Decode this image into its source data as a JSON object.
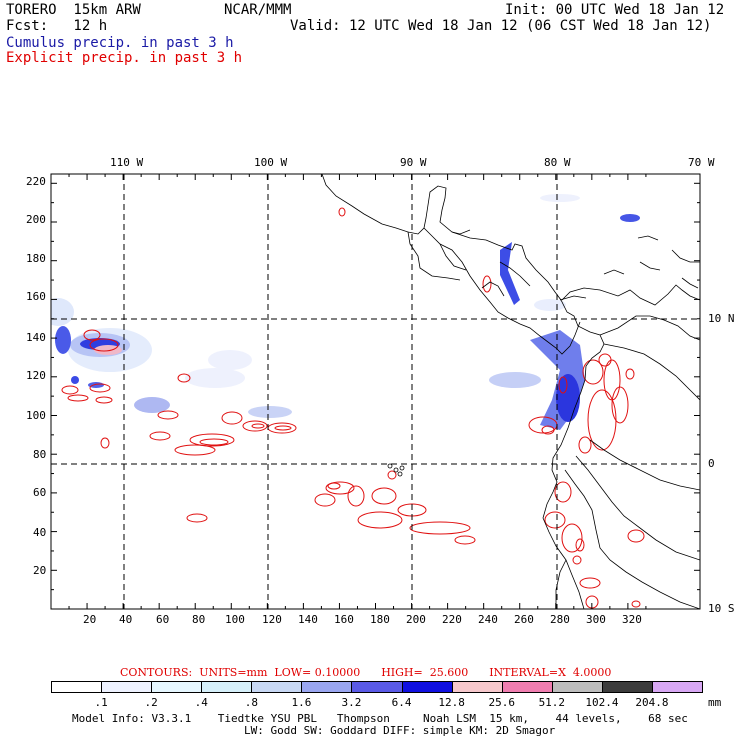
{
  "header": {
    "model": "TORERO  15km ARW",
    "org": "NCAR/MMM",
    "init": "Init: 00 UTC Wed 18 Jan 12",
    "fcst": "Fcst:   12 h",
    "valid": "Valid: 12 UTC Wed 18 Jan 12 (06 CST Wed 18 Jan 12)",
    "field1": "Cumulus precip. in past 3 h",
    "field2": "Explicit precip. in past 3 h",
    "field1_color": "#1a1aa6",
    "field2_color": "#e00000"
  },
  "map": {
    "top_lon_labels": [
      "110 W",
      "100 W",
      "90 W",
      "80 W",
      "70 W"
    ],
    "right_lat_labels": [
      "10 N",
      "0",
      "10 S"
    ],
    "left_ticks": [
      "220",
      "200",
      "180",
      "160",
      "140",
      "120",
      "100",
      "80",
      "60",
      "40",
      "20"
    ],
    "bottom_ticks": [
      "20",
      "40",
      "60",
      "80",
      "100",
      "120",
      "140",
      "160",
      "180",
      "200",
      "220",
      "240",
      "260",
      "280",
      "300",
      "320"
    ]
  },
  "contours": {
    "line": "CONTOURS:  UNITS=mm  LOW= 0.10000      HIGH=  25.600      INTERVAL=X  4.0000"
  },
  "legend": {
    "labels": [
      ".1",
      ".2",
      ".4",
      ".8",
      "1.6",
      "3.2",
      "6.4",
      "12.8",
      "25.6",
      "51.2",
      "102.4",
      "204.8"
    ],
    "unit": "mm",
    "colors": [
      "#ffffff",
      "#eef2ff",
      "#e6f7ff",
      "#d6f0fa",
      "#c8d8f4",
      "#9aa6f0",
      "#5a5ae6",
      "#0f0fe0",
      "#f6c8cc",
      "#f07eb0",
      "#bdbdbd",
      "#3c3c3c",
      "#d8a8f4"
    ]
  },
  "footer": {
    "line1": "Model Info: V3.3.1    Tiedtke YSU PBL   Thompson     Noah LSM  15 km,    44 levels,    68 sec",
    "line2": "LW: Godd SW: Goddard DIFF: simple KM: 2D Smagor"
  }
}
